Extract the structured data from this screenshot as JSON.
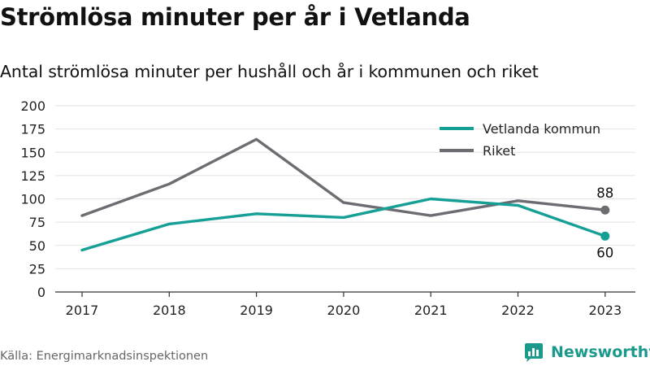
{
  "title": "Strömlösa minuter per år i Vetlanda",
  "subtitle": "Antal strömlösa minuter per hushåll och år i kommunen och riket",
  "source": "Källa: Energimarknadsinspektionen",
  "brand": {
    "name": "Newsworthy",
    "icon": "newsworthy-logo-icon"
  },
  "chart_data": {
    "type": "line",
    "title": "Strömlösa minuter per år i Vetlanda",
    "subtitle": "Antal strömlösa minuter per hushåll och år i kommunen och riket",
    "categories": [
      "2017",
      "2018",
      "2019",
      "2020",
      "2021",
      "2022",
      "2023"
    ],
    "ylim": [
      0,
      200
    ],
    "yticks": [
      0,
      25,
      50,
      75,
      100,
      125,
      150,
      175,
      200
    ],
    "grid": true,
    "legend_position": "top-right",
    "series": [
      {
        "name": "Vetlanda kommun",
        "color": "#16a095",
        "values": [
          45,
          73,
          84,
          80,
          100,
          93,
          60
        ]
      },
      {
        "name": "Riket",
        "color": "#6c6c72",
        "values": [
          82,
          116,
          164,
          96,
          82,
          98,
          88
        ]
      }
    ],
    "end_labels": [
      {
        "series": "Riket",
        "text": "88"
      },
      {
        "series": "Vetlanda kommun",
        "text": "60"
      }
    ]
  }
}
